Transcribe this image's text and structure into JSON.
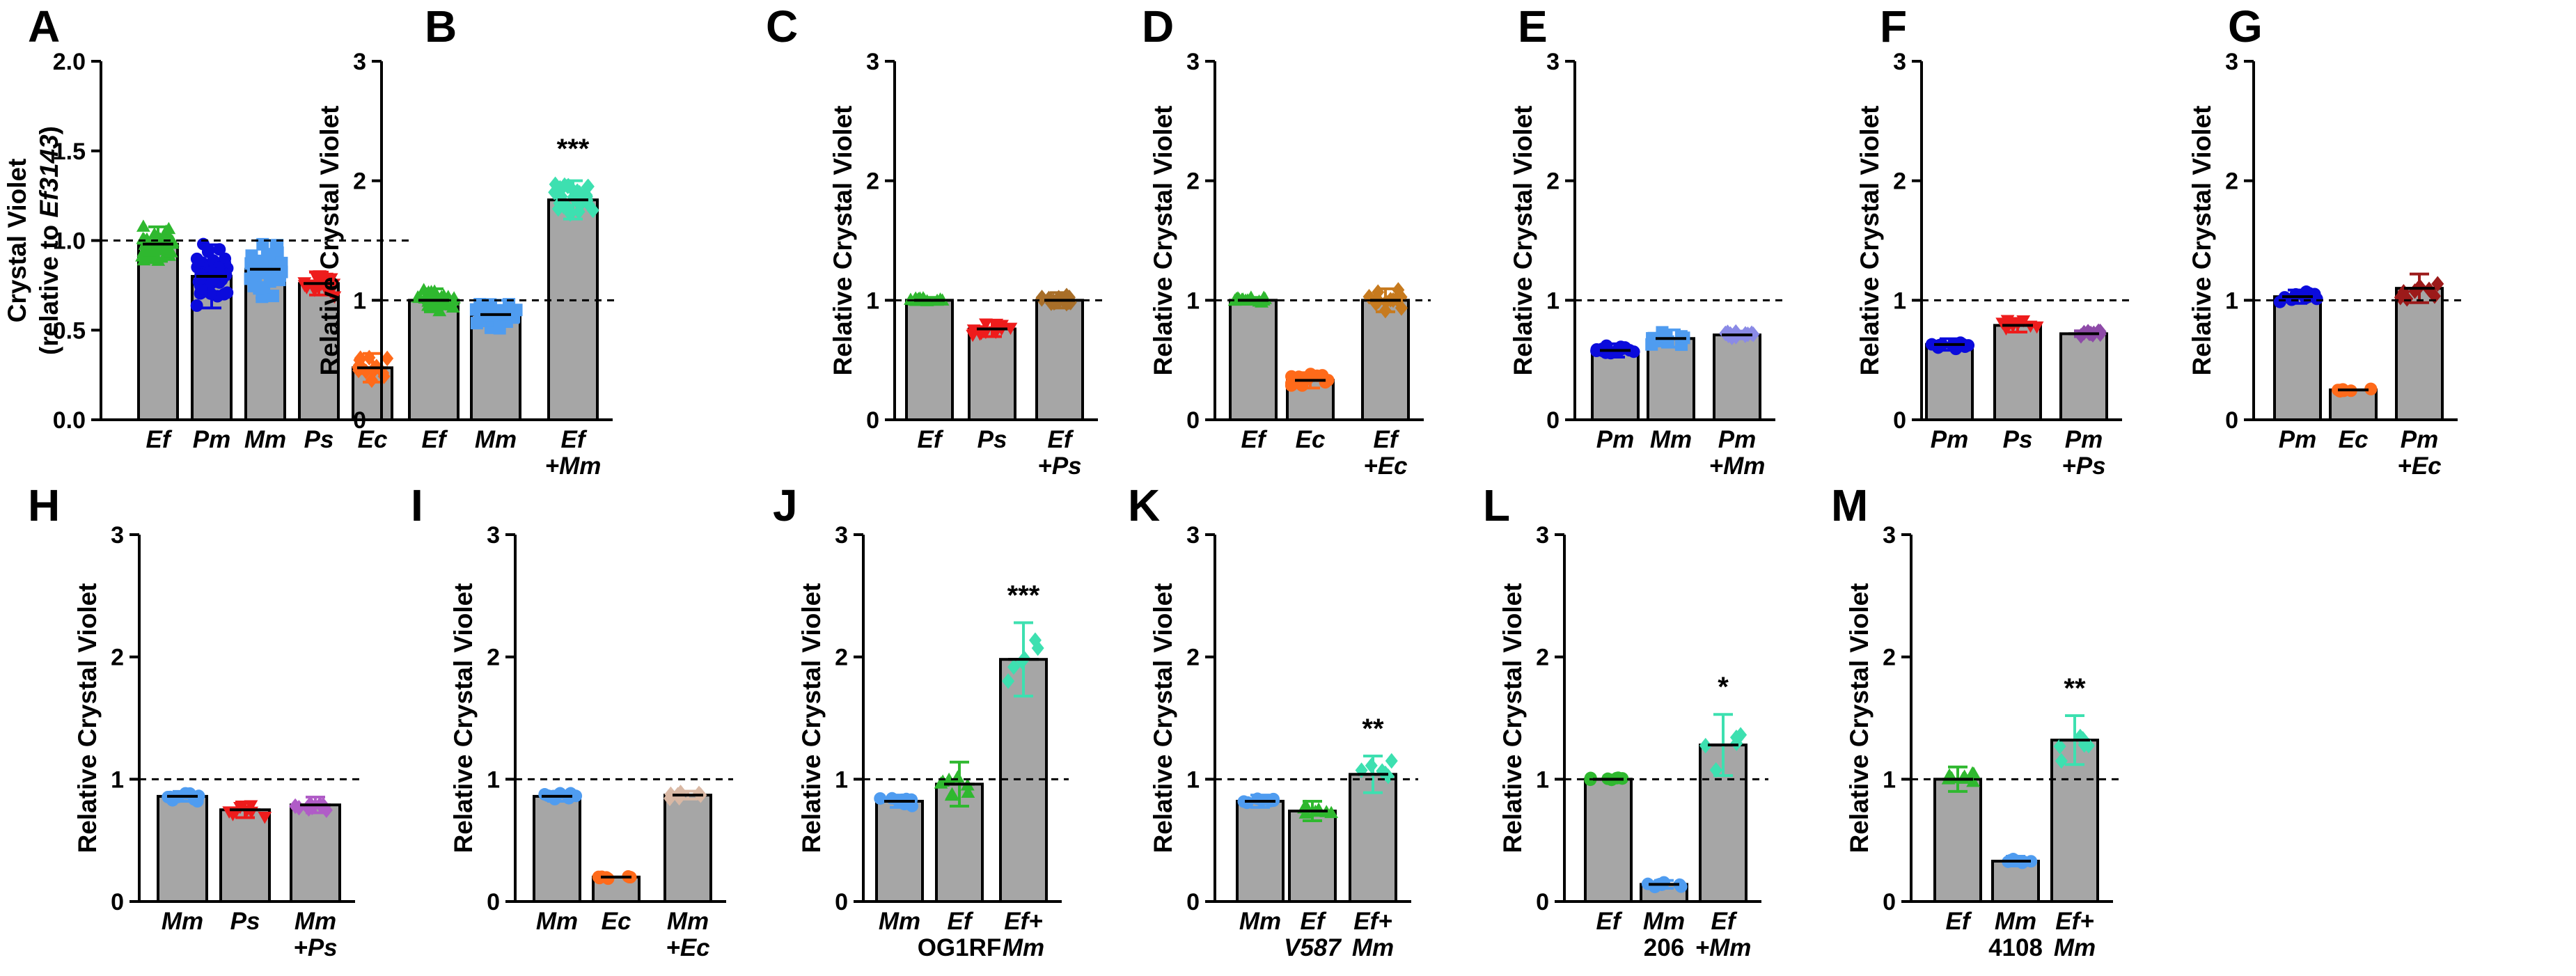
{
  "chart_data": [
    {
      "panel": "A",
      "type": "bar",
      "ylabel_line1": "Crystal Violet",
      "ylabel_line2_prefix": "(relative to ",
      "ylabel_line2_italic": "Ef3143",
      "ylabel_line2_suffix": ")",
      "ylim": [
        0,
        2.0
      ],
      "yticks": [
        "0.0",
        "0.5",
        "1.0",
        "1.5",
        "2.0"
      ],
      "ytick_values": [
        0,
        0.5,
        1.0,
        1.5,
        2.0
      ],
      "reference_line": 1.0,
      "categories": [
        {
          "lines": [
            {
              "text": "Ef",
              "italic": true
            }
          ],
          "value": 0.98,
          "color": "#2fb82f",
          "marker": "triangle",
          "spread": 0.12,
          "n": 40
        },
        {
          "lines": [
            {
              "text": "Pm",
              "italic": true
            }
          ],
          "value": 0.8,
          "color": "#0b0bdc",
          "marker": "circle",
          "spread": 0.22,
          "n": 50
        },
        {
          "lines": [
            {
              "text": "Mm",
              "italic": true
            }
          ],
          "value": 0.84,
          "color": "#4f9cf0",
          "marker": "square",
          "spread": 0.2,
          "n": 40
        },
        {
          "lines": [
            {
              "text": "Ps",
              "italic": true
            }
          ],
          "value": 0.76,
          "color": "#ee1c1c",
          "marker": "invtriangle",
          "spread": 0.08,
          "n": 18
        },
        {
          "lines": [
            {
              "text": "Ec",
              "italic": true
            }
          ],
          "value": 0.29,
          "color": "#ff6a1a",
          "marker": "diamond",
          "spread": 0.1,
          "n": 15
        }
      ]
    },
    {
      "panel": "B",
      "type": "bar",
      "ylabel": "Relative Crystal Violet",
      "ylim": [
        0,
        3
      ],
      "yticks": [
        "0",
        "1",
        "2",
        "3"
      ],
      "ytick_values": [
        0,
        1,
        2,
        3
      ],
      "reference_line": 1,
      "categories": [
        {
          "lines": [
            {
              "text": "Ef",
              "italic": true
            }
          ],
          "value": 1.0,
          "color": "#2fb82f",
          "marker": "triangle",
          "spread": 0.12,
          "n": 30
        },
        {
          "lines": [
            {
              "text": "Mm",
              "italic": true
            }
          ],
          "value": 0.88,
          "color": "#4f9cf0",
          "marker": "square",
          "spread": 0.15,
          "n": 30
        },
        {
          "lines": [
            {
              "text": "Ef",
              "italic": true
            },
            {
              "text": "+Mm",
              "italic": true
            }
          ],
          "value": 1.84,
          "color": "#3de0b0",
          "marker": "diamond",
          "spread": 0.2,
          "n": 30,
          "significance": "***"
        }
      ]
    },
    {
      "panel": "C",
      "type": "bar",
      "ylabel": "Relative Crystal Violet",
      "ylim": [
        0,
        3
      ],
      "yticks": [
        "0",
        "1",
        "2",
        "3"
      ],
      "ytick_values": [
        0,
        1,
        2,
        3
      ],
      "reference_line": 1,
      "categories": [
        {
          "lines": [
            {
              "text": "Ef",
              "italic": true
            }
          ],
          "value": 1.0,
          "color": "#2fb82f",
          "marker": "triangle",
          "spread": 0.03,
          "n": 15
        },
        {
          "lines": [
            {
              "text": "Ps",
              "italic": true
            }
          ],
          "value": 0.76,
          "color": "#ee1c1c",
          "marker": "invtriangle",
          "spread": 0.08,
          "n": 15
        },
        {
          "lines": [
            {
              "text": "Ef",
              "italic": true
            },
            {
              "text": "+Ps",
              "italic": true
            }
          ],
          "value": 1.0,
          "color": "#a86e28",
          "marker": "diamond",
          "spread": 0.08,
          "n": 15
        }
      ]
    },
    {
      "panel": "D",
      "type": "bar",
      "ylabel": "Relative Crystal Violet",
      "ylim": [
        0,
        3
      ],
      "yticks": [
        "0",
        "1",
        "2",
        "3"
      ],
      "ytick_values": [
        0,
        1,
        2,
        3
      ],
      "reference_line": 1,
      "categories": [
        {
          "lines": [
            {
              "text": "Ef",
              "italic": true
            }
          ],
          "value": 1.0,
          "color": "#2fb82f",
          "marker": "triangle",
          "spread": 0.03,
          "n": 15
        },
        {
          "lines": [
            {
              "text": "Ec",
              "italic": true
            }
          ],
          "value": 0.33,
          "color": "#ff6a1a",
          "marker": "circle",
          "spread": 0.08,
          "n": 14
        },
        {
          "lines": [
            {
              "text": "Ef",
              "italic": true
            },
            {
              "text": "+Ec",
              "italic": true
            }
          ],
          "value": 1.0,
          "color": "#c77a1e",
          "marker": "diamond",
          "spread": 0.12,
          "n": 15
        }
      ]
    },
    {
      "panel": "E",
      "type": "bar",
      "ylabel": "Relative Crystal Violet",
      "ylim": [
        0,
        3
      ],
      "yticks": [
        "0",
        "1",
        "2",
        "3"
      ],
      "ytick_values": [
        0,
        1,
        2,
        3
      ],
      "reference_line": 1,
      "categories": [
        {
          "lines": [
            {
              "text": "Pm",
              "italic": true
            }
          ],
          "value": 0.58,
          "color": "#0b0bdc",
          "marker": "circle",
          "spread": 0.07,
          "n": 15
        },
        {
          "lines": [
            {
              "text": "Mm",
              "italic": true
            }
          ],
          "value": 0.68,
          "color": "#4f9cf0",
          "marker": "square",
          "spread": 0.09,
          "n": 15
        },
        {
          "lines": [
            {
              "text": "Pm",
              "italic": true
            },
            {
              "text": "+Mm",
              "italic": true
            }
          ],
          "value": 0.71,
          "color": "#8a8ae6",
          "marker": "diamond",
          "spread": 0.04,
          "n": 12
        }
      ]
    },
    {
      "panel": "F",
      "type": "bar",
      "ylabel": "Relative Crystal Violet",
      "ylim": [
        0,
        3
      ],
      "yticks": [
        "0",
        "1",
        "2",
        "3"
      ],
      "ytick_values": [
        0,
        1,
        2,
        3
      ],
      "reference_line": 1,
      "categories": [
        {
          "lines": [
            {
              "text": "Pm",
              "italic": true
            }
          ],
          "value": 0.63,
          "color": "#0b0bdc",
          "marker": "circle",
          "spread": 0.06,
          "n": 14
        },
        {
          "lines": [
            {
              "text": "Ps",
              "italic": true
            }
          ],
          "value": 0.79,
          "color": "#ee1c1c",
          "marker": "invtriangle",
          "spread": 0.07,
          "n": 14
        },
        {
          "lines": [
            {
              "text": "Pm",
              "italic": true
            },
            {
              "text": "+Ps",
              "italic": true
            }
          ],
          "value": 0.72,
          "color": "#8e4aa8",
          "marker": "diamond",
          "spread": 0.03,
          "n": 10
        }
      ]
    },
    {
      "panel": "G",
      "type": "bar",
      "ylabel": "Relative Crystal Violet",
      "ylim": [
        0,
        3
      ],
      "yticks": [
        "0",
        "1",
        "2",
        "3"
      ],
      "ytick_values": [
        0,
        1,
        2,
        3
      ],
      "reference_line": 1,
      "categories": [
        {
          "lines": [
            {
              "text": "Pm",
              "italic": true
            }
          ],
          "value": 1.03,
          "color": "#0b0bdc",
          "marker": "circle",
          "spread": 0.07,
          "n": 10
        },
        {
          "lines": [
            {
              "text": "Ec",
              "italic": true
            }
          ],
          "value": 0.25,
          "color": "#ff6a1a",
          "marker": "circle",
          "spread": 0.02,
          "n": 8
        },
        {
          "lines": [
            {
              "text": "Pm",
              "italic": true
            },
            {
              "text": "+Ec",
              "italic": true
            }
          ],
          "value": 1.1,
          "color": "#9c1a1a",
          "marker": "diamond",
          "spread": 0.15,
          "n": 8
        }
      ]
    },
    {
      "panel": "H",
      "type": "bar",
      "ylabel": "Relative Crystal Violet",
      "ylim": [
        0,
        3
      ],
      "yticks": [
        "0",
        "1",
        "2",
        "3"
      ],
      "ytick_values": [
        0,
        1,
        2,
        3
      ],
      "reference_line": 1,
      "categories": [
        {
          "lines": [
            {
              "text": "Mm",
              "italic": true
            }
          ],
          "value": 0.86,
          "color": "#4f9cf0",
          "marker": "circle",
          "spread": 0.05,
          "n": 10
        },
        {
          "lines": [
            {
              "text": "Ps",
              "italic": true
            }
          ],
          "value": 0.75,
          "color": "#ee1c1c",
          "marker": "invtriangle",
          "spread": 0.08,
          "n": 8
        },
        {
          "lines": [
            {
              "text": "Mm",
              "italic": true
            },
            {
              "text": "+Ps",
              "italic": true
            }
          ],
          "value": 0.79,
          "color": "#b05cc7",
          "marker": "diamond",
          "spread": 0.08,
          "n": 8
        }
      ]
    },
    {
      "panel": "I",
      "type": "bar",
      "ylabel": "Relative Crystal Violet",
      "ylim": [
        0,
        3
      ],
      "yticks": [
        "0",
        "1",
        "2",
        "3"
      ],
      "ytick_values": [
        0,
        1,
        2,
        3
      ],
      "reference_line": 1,
      "categories": [
        {
          "lines": [
            {
              "text": "Mm",
              "italic": true
            }
          ],
          "value": 0.86,
          "color": "#4f9cf0",
          "marker": "circle",
          "spread": 0.05,
          "n": 10
        },
        {
          "lines": [
            {
              "text": "Ec",
              "italic": true
            }
          ],
          "value": 0.2,
          "color": "#ff6a1a",
          "marker": "circle",
          "spread": 0.02,
          "n": 8
        },
        {
          "lines": [
            {
              "text": "Mm",
              "italic": true
            },
            {
              "text": "+Ec",
              "italic": true
            }
          ],
          "value": 0.87,
          "color": "#d9b8a4",
          "marker": "diamond",
          "spread": 0.04,
          "n": 8
        }
      ]
    },
    {
      "panel": "J",
      "type": "bar",
      "ylabel": "Relative Crystal Violet",
      "ylim": [
        0,
        3
      ],
      "yticks": [
        "0",
        "1",
        "2",
        "3"
      ],
      "ytick_values": [
        0,
        1,
        2,
        3
      ],
      "reference_line": 1,
      "categories": [
        {
          "lines": [
            {
              "text": "Mm",
              "italic": true
            }
          ],
          "value": 0.82,
          "color": "#4f9cf0",
          "marker": "circle",
          "spread": 0.05,
          "n": 8,
          "err": 0.05
        },
        {
          "lines": [
            {
              "text": "Ef",
              "italic": true
            },
            {
              "text": "OG1RF",
              "italic": false
            }
          ],
          "value": 0.96,
          "color": "#2fb82f",
          "marker": "triangle",
          "spread": 0.18,
          "n": 8,
          "err": 0.18
        },
        {
          "lines": [
            {
              "text": "Ef+",
              "italic": true
            },
            {
              "text": "Mm",
              "italic": true
            }
          ],
          "value": 1.98,
          "color": "#3de0b0",
          "marker": "diamond",
          "spread": 0.3,
          "n": 6,
          "err": 0.3,
          "significance": "***"
        }
      ]
    },
    {
      "panel": "K",
      "type": "bar",
      "ylabel": "Relative Crystal Violet",
      "ylim": [
        0,
        3
      ],
      "yticks": [
        "0",
        "1",
        "2",
        "3"
      ],
      "ytick_values": [
        0,
        1,
        2,
        3
      ],
      "reference_line": 1,
      "categories": [
        {
          "lines": [
            {
              "text": "Mm",
              "italic": true
            }
          ],
          "value": 0.82,
          "color": "#4f9cf0",
          "marker": "circle",
          "spread": 0.05,
          "n": 8,
          "err": 0.05
        },
        {
          "lines": [
            {
              "text": "Ef",
              "italic": true
            },
            {
              "text": "V587",
              "italic": true
            }
          ],
          "value": 0.74,
          "color": "#2fb82f",
          "marker": "triangle",
          "spread": 0.08,
          "n": 8,
          "err": 0.08
        },
        {
          "lines": [
            {
              "text": "Ef+",
              "italic": true
            },
            {
              "text": "Mm",
              "italic": true
            }
          ],
          "value": 1.04,
          "color": "#3de0b0",
          "marker": "diamond",
          "spread": 0.15,
          "n": 6,
          "err": 0.15,
          "significance": "**"
        }
      ]
    },
    {
      "panel": "L",
      "type": "bar",
      "ylabel": "Relative Crystal Violet",
      "ylim": [
        0,
        3
      ],
      "yticks": [
        "0",
        "1",
        "2",
        "3"
      ],
      "ytick_values": [
        0,
        1,
        2,
        3
      ],
      "reference_line": 1,
      "categories": [
        {
          "lines": [
            {
              "text": "Ef",
              "italic": true
            }
          ],
          "value": 1.0,
          "color": "#2fb82f",
          "marker": "circle",
          "spread": 0.02,
          "n": 8
        },
        {
          "lines": [
            {
              "text": "Mm",
              "italic": true
            },
            {
              "text": "206",
              "italic": false
            }
          ],
          "value": 0.14,
          "color": "#4f9cf0",
          "marker": "circle",
          "spread": 0.04,
          "n": 8
        },
        {
          "lines": [
            {
              "text": "Ef",
              "italic": true
            },
            {
              "text": "+Mm",
              "italic": true
            }
          ],
          "value": 1.28,
          "color": "#3de0b0",
          "marker": "diamond",
          "spread": 0.25,
          "n": 5,
          "err": 0.25,
          "significance": "*"
        }
      ]
    },
    {
      "panel": "M",
      "type": "bar",
      "ylabel": "Relative Crystal Violet",
      "ylim": [
        0,
        3
      ],
      "yticks": [
        "0",
        "1",
        "2",
        "3"
      ],
      "ytick_values": [
        0,
        1,
        2,
        3
      ],
      "reference_line": 1,
      "categories": [
        {
          "lines": [
            {
              "text": "Ef",
              "italic": true
            }
          ],
          "value": 1.0,
          "color": "#2fb82f",
          "marker": "triangle",
          "spread": 0.1,
          "n": 8,
          "err": 0.1
        },
        {
          "lines": [
            {
              "text": "Mm",
              "italic": true
            },
            {
              "text": "4108",
              "italic": false
            }
          ],
          "value": 0.33,
          "color": "#4f9cf0",
          "marker": "circle",
          "spread": 0.05,
          "n": 8
        },
        {
          "lines": [
            {
              "text": "Ef+",
              "italic": true
            },
            {
              "text": "Mm",
              "italic": true
            }
          ],
          "value": 1.32,
          "color": "#3de0b0",
          "marker": "diamond",
          "spread": 0.2,
          "n": 6,
          "err": 0.2,
          "significance": "**"
        }
      ]
    }
  ]
}
